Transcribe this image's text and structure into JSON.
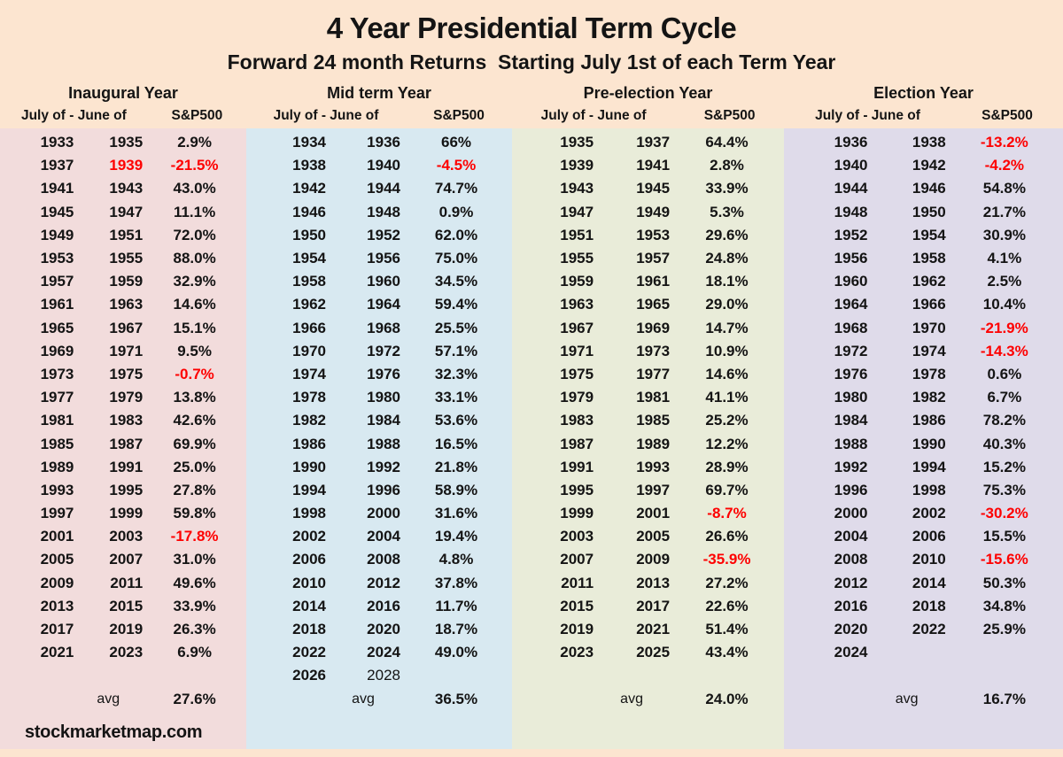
{
  "title": "4 Year Presidential Term Cycle",
  "subtitle": "Forward 24 month Returns  Starting July 1st of each Term Year",
  "footer": "stockmarketmap.com",
  "colors": {
    "page_background": "#fce5d0",
    "negative_value": "#fe0000",
    "text": "#141414",
    "panel_inaugural": "#f2dcdc",
    "panel_midterm": "#d8e9f1",
    "panel_preelection": "#e9ecd9",
    "panel_election": "#dfdbea"
  },
  "chart_data": {
    "type": "table",
    "title": "4 Year Presidential Term Cycle",
    "subtitle": "Forward 24 month Returns  Starting July 1st of each Term Year",
    "avg_label": "avg",
    "panels": [
      {
        "label": "Inaugural Year",
        "col_header_years": "July of - June of",
        "col_header_value": "S&P500",
        "bg": "#f2dcdc",
        "avg": "27.6%",
        "rows": [
          {
            "july": "1933",
            "june": "1935",
            "sp500": "2.9%"
          },
          {
            "july": "1937",
            "june": "1939",
            "sp500": "-21.5%",
            "negative": true,
            "june_red": true
          },
          {
            "july": "1941",
            "june": "1943",
            "sp500": "43.0%"
          },
          {
            "july": "1945",
            "june": "1947",
            "sp500": "11.1%"
          },
          {
            "july": "1949",
            "june": "1951",
            "sp500": "72.0%"
          },
          {
            "july": "1953",
            "june": "1955",
            "sp500": "88.0%"
          },
          {
            "july": "1957",
            "june": "1959",
            "sp500": "32.9%"
          },
          {
            "july": "1961",
            "june": "1963",
            "sp500": "14.6%"
          },
          {
            "july": "1965",
            "june": "1967",
            "sp500": "15.1%"
          },
          {
            "july": "1969",
            "june": "1971",
            "sp500": "9.5%"
          },
          {
            "july": "1973",
            "june": "1975",
            "sp500": "-0.7%",
            "negative": true
          },
          {
            "july": "1977",
            "june": "1979",
            "sp500": "13.8%"
          },
          {
            "july": "1981",
            "june": "1983",
            "sp500": "42.6%"
          },
          {
            "july": "1985",
            "june": "1987",
            "sp500": "69.9%"
          },
          {
            "july": "1989",
            "june": "1991",
            "sp500": "25.0%"
          },
          {
            "july": "1993",
            "june": "1995",
            "sp500": "27.8%"
          },
          {
            "july": "1997",
            "june": "1999",
            "sp500": "59.8%"
          },
          {
            "july": "2001",
            "june": "2003",
            "sp500": "-17.8%",
            "negative": true
          },
          {
            "july": "2005",
            "june": "2007",
            "sp500": "31.0%"
          },
          {
            "july": "2009",
            "june": "2011",
            "sp500": "49.6%"
          },
          {
            "july": "2013",
            "june": "2015",
            "sp500": "33.9%"
          },
          {
            "july": "2017",
            "june": "2019",
            "sp500": "26.3%"
          },
          {
            "july": "2021",
            "june": "2023",
            "sp500": "6.9%"
          }
        ]
      },
      {
        "label": "Mid term Year",
        "col_header_years": "July of - June of",
        "col_header_value": "S&P500",
        "bg": "#d8e9f1",
        "avg": "36.5%",
        "rows": [
          {
            "july": "1934",
            "june": "1936",
            "sp500": "66%"
          },
          {
            "july": "1938",
            "june": "1940",
            "sp500": "-4.5%",
            "negative": true
          },
          {
            "july": "1942",
            "june": "1944",
            "sp500": "74.7%"
          },
          {
            "july": "1946",
            "june": "1948",
            "sp500": "0.9%"
          },
          {
            "july": "1950",
            "june": "1952",
            "sp500": "62.0%"
          },
          {
            "july": "1954",
            "june": "1956",
            "sp500": "75.0%"
          },
          {
            "july": "1958",
            "june": "1960",
            "sp500": "34.5%"
          },
          {
            "july": "1962",
            "june": "1964",
            "sp500": "59.4%"
          },
          {
            "july": "1966",
            "june": "1968",
            "sp500": "25.5%"
          },
          {
            "july": "1970",
            "june": "1972",
            "sp500": "57.1%"
          },
          {
            "july": "1974",
            "june": "1976",
            "sp500": "32.3%"
          },
          {
            "july": "1978",
            "june": "1980",
            "sp500": "33.1%"
          },
          {
            "july": "1982",
            "june": "1984",
            "sp500": "53.6%"
          },
          {
            "july": "1986",
            "june": "1988",
            "sp500": "16.5%"
          },
          {
            "july": "1990",
            "june": "1992",
            "sp500": "21.8%"
          },
          {
            "july": "1994",
            "june": "1996",
            "sp500": "58.9%"
          },
          {
            "july": "1998",
            "june": "2000",
            "sp500": "31.6%"
          },
          {
            "july": "2002",
            "june": "2004",
            "sp500": "19.4%"
          },
          {
            "july": "2006",
            "june": "2008",
            "sp500": "4.8%"
          },
          {
            "july": "2010",
            "june": "2012",
            "sp500": "37.8%"
          },
          {
            "july": "2014",
            "june": "2016",
            "sp500": "11.7%"
          },
          {
            "july": "2018",
            "june": "2020",
            "sp500": "18.7%"
          },
          {
            "july": "2022",
            "june": "2024",
            "sp500": "49.0%"
          },
          {
            "july": "2026",
            "june": "2028",
            "sp500": "",
            "june_light": true
          }
        ]
      },
      {
        "label": "Pre-election Year",
        "col_header_years": "July of - June of",
        "col_header_value": "S&P500",
        "bg": "#e9ecd9",
        "avg": "24.0%",
        "rows": [
          {
            "july": "1935",
            "june": "1937",
            "sp500": "64.4%"
          },
          {
            "july": "1939",
            "june": "1941",
            "sp500": "2.8%"
          },
          {
            "july": "1943",
            "june": "1945",
            "sp500": "33.9%"
          },
          {
            "july": "1947",
            "june": "1949",
            "sp500": "5.3%"
          },
          {
            "july": "1951",
            "june": "1953",
            "sp500": "29.6%"
          },
          {
            "july": "1955",
            "june": "1957",
            "sp500": "24.8%"
          },
          {
            "july": "1959",
            "june": "1961",
            "sp500": "18.1%"
          },
          {
            "july": "1963",
            "june": "1965",
            "sp500": "29.0%"
          },
          {
            "july": "1967",
            "june": "1969",
            "sp500": "14.7%"
          },
          {
            "july": "1971",
            "june": "1973",
            "sp500": "10.9%"
          },
          {
            "july": "1975",
            "june": "1977",
            "sp500": "14.6%"
          },
          {
            "july": "1979",
            "june": "1981",
            "sp500": "41.1%"
          },
          {
            "july": "1983",
            "june": "1985",
            "sp500": "25.2%"
          },
          {
            "july": "1987",
            "june": "1989",
            "sp500": "12.2%"
          },
          {
            "july": "1991",
            "june": "1993",
            "sp500": "28.9%"
          },
          {
            "july": "1995",
            "june": "1997",
            "sp500": "69.7%"
          },
          {
            "july": "1999",
            "june": "2001",
            "sp500": "-8.7%",
            "negative": true
          },
          {
            "july": "2003",
            "june": "2005",
            "sp500": "26.6%"
          },
          {
            "july": "2007",
            "june": "2009",
            "sp500": "-35.9%",
            "negative": true
          },
          {
            "july": "2011",
            "june": "2013",
            "sp500": "27.2%"
          },
          {
            "july": "2015",
            "june": "2017",
            "sp500": "22.6%"
          },
          {
            "july": "2019",
            "june": "2021",
            "sp500": "51.4%"
          },
          {
            "july": "2023",
            "june": "2025",
            "sp500": "43.4%"
          }
        ]
      },
      {
        "label": "Election Year",
        "col_header_years": "July of - June of",
        "col_header_value": "S&P500",
        "bg": "#dfdbea",
        "avg": "16.7%",
        "rows": [
          {
            "july": "1936",
            "june": "1938",
            "sp500": "-13.2%",
            "negative": true
          },
          {
            "july": "1940",
            "june": "1942",
            "sp500": "-4.2%",
            "negative": true
          },
          {
            "july": "1944",
            "june": "1946",
            "sp500": "54.8%"
          },
          {
            "july": "1948",
            "june": "1950",
            "sp500": "21.7%"
          },
          {
            "july": "1952",
            "june": "1954",
            "sp500": "30.9%"
          },
          {
            "july": "1956",
            "june": "1958",
            "sp500": "4.1%"
          },
          {
            "july": "1960",
            "june": "1962",
            "sp500": "2.5%"
          },
          {
            "july": "1964",
            "june": "1966",
            "sp500": "10.4%"
          },
          {
            "july": "1968",
            "june": "1970",
            "sp500": "-21.9%",
            "negative": true
          },
          {
            "july": "1972",
            "june": "1974",
            "sp500": "-14.3%",
            "negative": true
          },
          {
            "july": "1976",
            "june": "1978",
            "sp500": "0.6%"
          },
          {
            "july": "1980",
            "june": "1982",
            "sp500": "6.7%"
          },
          {
            "july": "1984",
            "june": "1986",
            "sp500": "78.2%"
          },
          {
            "july": "1988",
            "june": "1990",
            "sp500": "40.3%"
          },
          {
            "july": "1992",
            "june": "1994",
            "sp500": "15.2%"
          },
          {
            "july": "1996",
            "june": "1998",
            "sp500": "75.3%"
          },
          {
            "july": "2000",
            "june": "2002",
            "sp500": "-30.2%",
            "negative": true
          },
          {
            "july": "2004",
            "june": "2006",
            "sp500": "15.5%"
          },
          {
            "july": "2008",
            "june": "2010",
            "sp500": "-15.6%",
            "negative": true
          },
          {
            "july": "2012",
            "june": "2014",
            "sp500": "50.3%"
          },
          {
            "july": "2016",
            "june": "2018",
            "sp500": "34.8%"
          },
          {
            "july": "2020",
            "june": "2022",
            "sp500": "25.9%"
          },
          {
            "july": "2024",
            "june": "",
            "sp500": ""
          }
        ]
      }
    ]
  }
}
